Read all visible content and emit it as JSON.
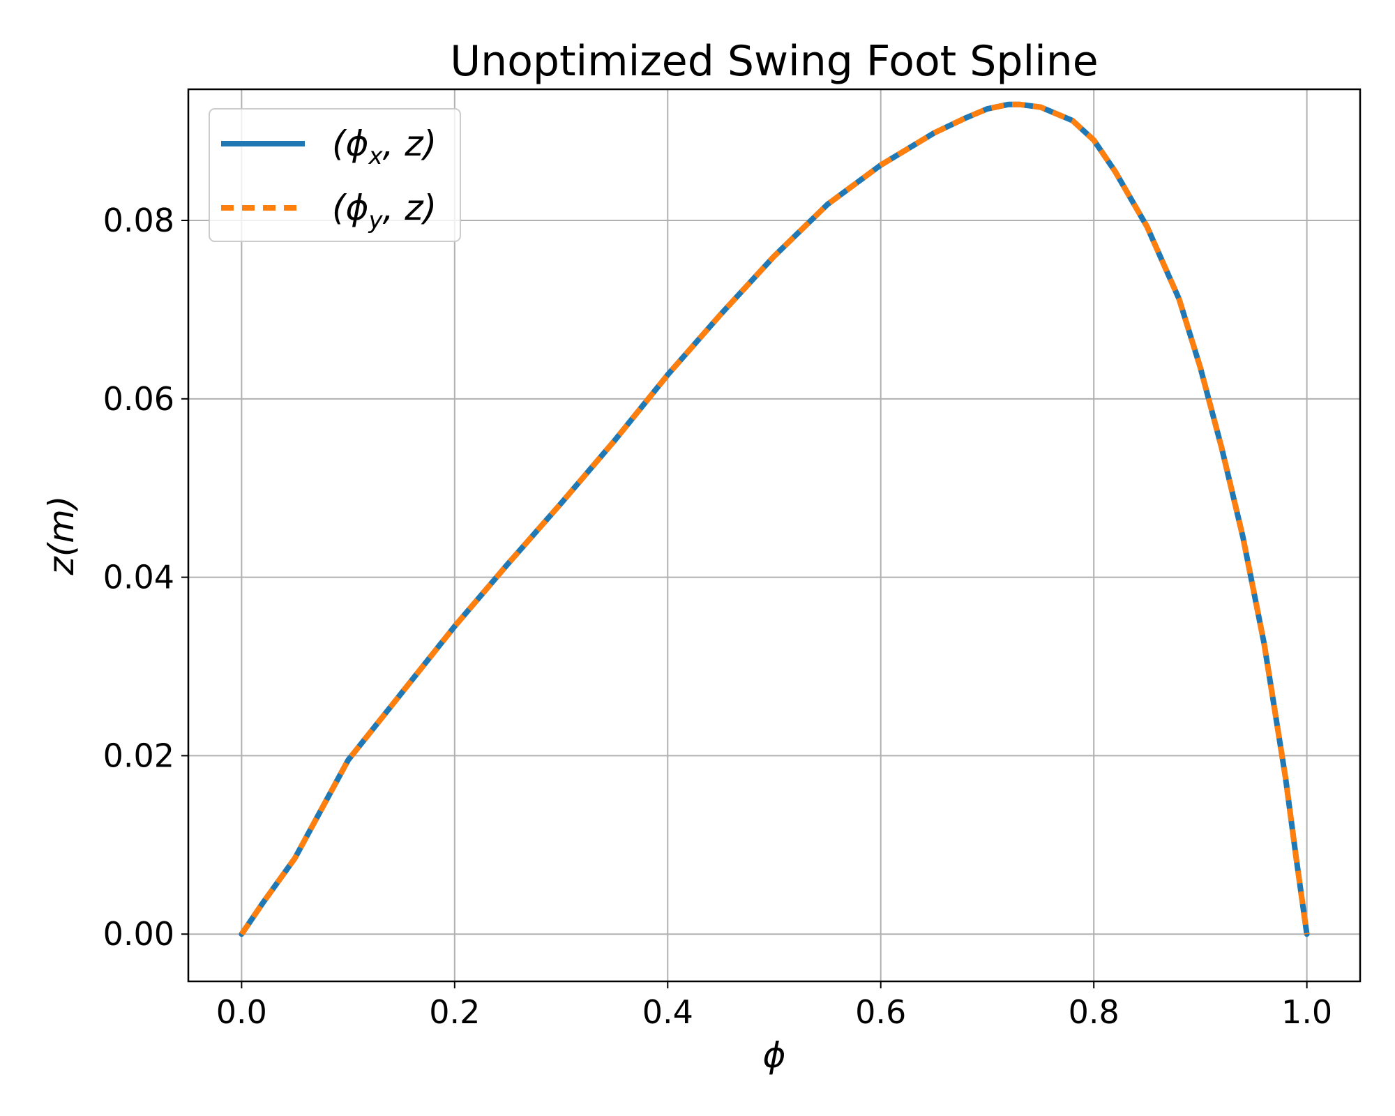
{
  "chart_data": {
    "type": "line",
    "title": "Unoptimized Swing Foot Spline",
    "xlabel": "ϕ",
    "ylabel": "z(m)",
    "xlim": [
      -0.05,
      1.05
    ],
    "ylim": [
      -0.0053,
      0.0947
    ],
    "xticks": [
      0.0,
      0.2,
      0.4,
      0.6,
      0.8,
      1.0
    ],
    "xtick_labels": [
      "0.0",
      "0.2",
      "0.4",
      "0.6",
      "0.8",
      "1.0"
    ],
    "yticks": [
      0.0,
      0.02,
      0.04,
      0.06,
      0.08
    ],
    "ytick_labels": [
      "0.00",
      "0.02",
      "0.04",
      "0.06",
      "0.08"
    ],
    "grid": true,
    "legend_position": "upper-left",
    "series": [
      {
        "name": "(ϕx, z)",
        "legend": {
          "base": "ϕ",
          "sub": "x",
          "suffix": "z"
        },
        "color": "#1f77b4",
        "style": "solid",
        "x": [
          0.0,
          0.02,
          0.05,
          0.1,
          0.15,
          0.2,
          0.25,
          0.3,
          0.35,
          0.4,
          0.45,
          0.5,
          0.55,
          0.6,
          0.65,
          0.68,
          0.7,
          0.72,
          0.73,
          0.75,
          0.78,
          0.8,
          0.82,
          0.85,
          0.88,
          0.9,
          0.92,
          0.94,
          0.96,
          0.98,
          0.99,
          1.0
        ],
        "y": [
          0.0,
          0.0035,
          0.0085,
          0.0195,
          0.027,
          0.0345,
          0.0415,
          0.0483,
          0.0553,
          0.0627,
          0.0695,
          0.076,
          0.0818,
          0.0862,
          0.0898,
          0.0915,
          0.0925,
          0.093,
          0.093,
          0.0927,
          0.0912,
          0.089,
          0.0855,
          0.0793,
          0.0712,
          0.0635,
          0.0545,
          0.0445,
          0.0325,
          0.0175,
          0.0085,
          0.0
        ]
      },
      {
        "name": "(ϕy, z)",
        "legend": {
          "base": "ϕ",
          "sub": "y",
          "suffix": "z"
        },
        "color": "#ff7f0e",
        "style": "dashed",
        "x": [
          0.0,
          0.02,
          0.05,
          0.1,
          0.15,
          0.2,
          0.25,
          0.3,
          0.35,
          0.4,
          0.45,
          0.5,
          0.55,
          0.6,
          0.65,
          0.68,
          0.7,
          0.72,
          0.73,
          0.75,
          0.78,
          0.8,
          0.82,
          0.85,
          0.88,
          0.9,
          0.92,
          0.94,
          0.96,
          0.98,
          0.99,
          1.0
        ],
        "y": [
          0.0,
          0.0035,
          0.0085,
          0.0195,
          0.027,
          0.0345,
          0.0415,
          0.0483,
          0.0553,
          0.0627,
          0.0695,
          0.076,
          0.0818,
          0.0862,
          0.0898,
          0.0915,
          0.0925,
          0.093,
          0.093,
          0.0927,
          0.0912,
          0.089,
          0.0855,
          0.0793,
          0.0712,
          0.0635,
          0.0545,
          0.0445,
          0.0325,
          0.0175,
          0.0085,
          0.0
        ]
      }
    ]
  }
}
